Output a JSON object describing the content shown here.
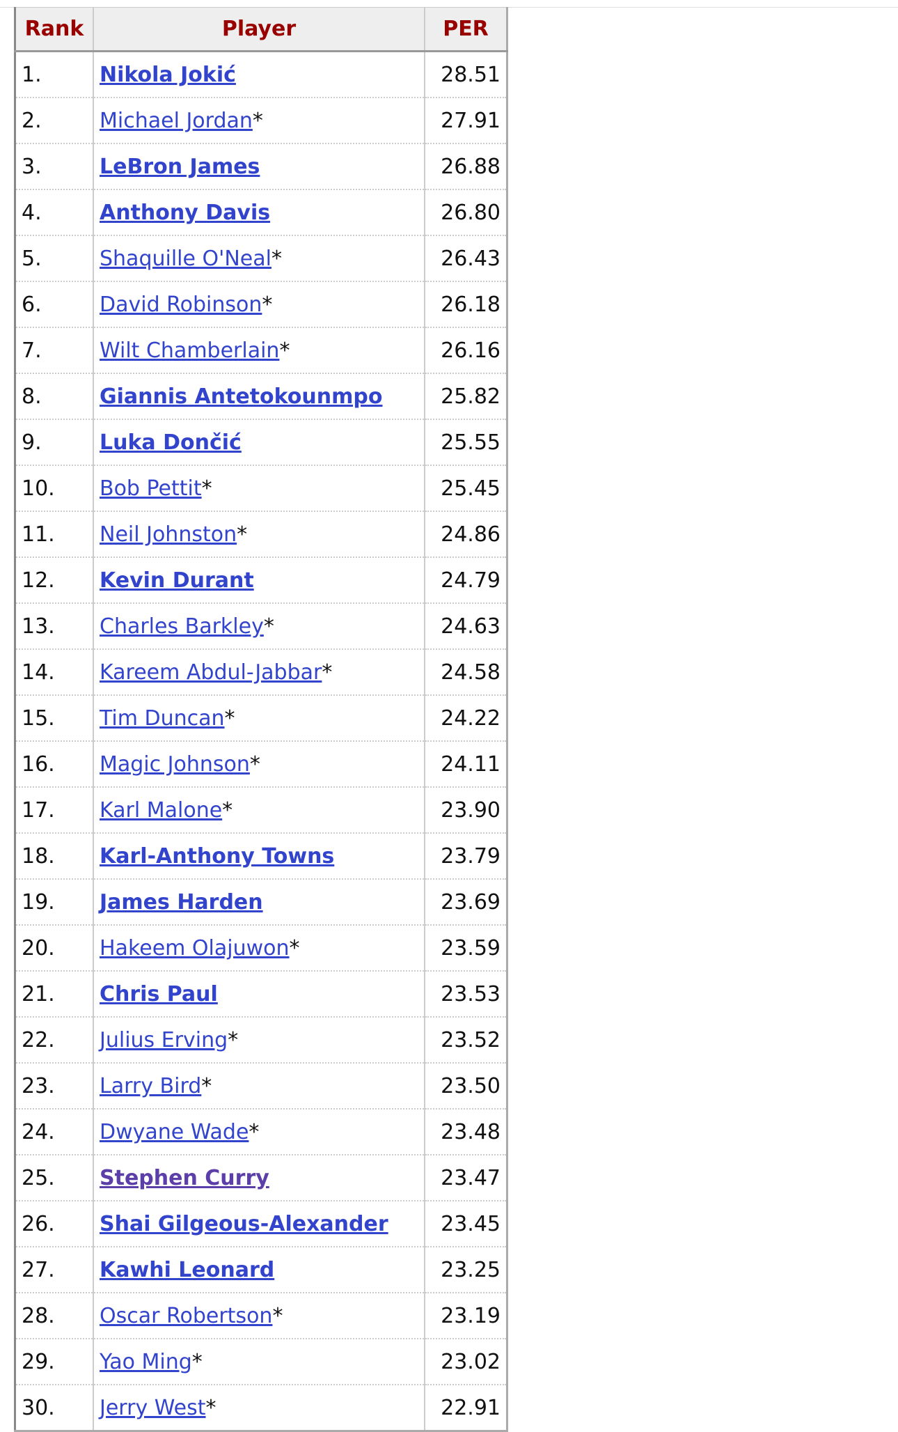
{
  "table": {
    "headers": {
      "rank": "Rank",
      "player": "Player",
      "per": "PER"
    },
    "colors": {
      "header_text": "#990000",
      "link": "#3344cc",
      "visited_link": "#5b3ea8"
    },
    "rows": [
      {
        "rank": "1.",
        "player": "Nikola Jokić",
        "hof": "",
        "per": "28.51",
        "active": true
      },
      {
        "rank": "2.",
        "player": "Michael Jordan",
        "hof": "*",
        "per": "27.91",
        "active": false
      },
      {
        "rank": "3.",
        "player": "LeBron James",
        "hof": "",
        "per": "26.88",
        "active": true
      },
      {
        "rank": "4.",
        "player": "Anthony Davis",
        "hof": "",
        "per": "26.80",
        "active": true
      },
      {
        "rank": "5.",
        "player": "Shaquille O'Neal",
        "hof": "*",
        "per": "26.43",
        "active": false
      },
      {
        "rank": "6.",
        "player": "David Robinson",
        "hof": "*",
        "per": "26.18",
        "active": false
      },
      {
        "rank": "7.",
        "player": "Wilt Chamberlain",
        "hof": "*",
        "per": "26.16",
        "active": false
      },
      {
        "rank": "8.",
        "player": "Giannis Antetokounmpo",
        "hof": "",
        "per": "25.82",
        "active": true
      },
      {
        "rank": "9.",
        "player": "Luka Dončić",
        "hof": "",
        "per": "25.55",
        "active": true
      },
      {
        "rank": "10.",
        "player": "Bob Pettit",
        "hof": "*",
        "per": "25.45",
        "active": false
      },
      {
        "rank": "11.",
        "player": "Neil Johnston",
        "hof": "*",
        "per": "24.86",
        "active": false
      },
      {
        "rank": "12.",
        "player": "Kevin Durant",
        "hof": "",
        "per": "24.79",
        "active": true
      },
      {
        "rank": "13.",
        "player": "Charles Barkley",
        "hof": "*",
        "per": "24.63",
        "active": false
      },
      {
        "rank": "14.",
        "player": "Kareem Abdul-Jabbar",
        "hof": "*",
        "per": "24.58",
        "active": false
      },
      {
        "rank": "15.",
        "player": "Tim Duncan",
        "hof": "*",
        "per": "24.22",
        "active": false
      },
      {
        "rank": "16.",
        "player": "Magic Johnson",
        "hof": "*",
        "per": "24.11",
        "active": false
      },
      {
        "rank": "17.",
        "player": "Karl Malone",
        "hof": "*",
        "per": "23.90",
        "active": false
      },
      {
        "rank": "18.",
        "player": "Karl-Anthony Towns",
        "hof": "",
        "per": "23.79",
        "active": true
      },
      {
        "rank": "19.",
        "player": "James Harden",
        "hof": "",
        "per": "23.69",
        "active": true
      },
      {
        "rank": "20.",
        "player": "Hakeem Olajuwon",
        "hof": "*",
        "per": "23.59",
        "active": false
      },
      {
        "rank": "21.",
        "player": "Chris Paul",
        "hof": "",
        "per": "23.53",
        "active": true
      },
      {
        "rank": "22.",
        "player": "Julius Erving",
        "hof": "*",
        "per": "23.52",
        "active": false
      },
      {
        "rank": "23.",
        "player": "Larry Bird",
        "hof": "*",
        "per": "23.50",
        "active": false
      },
      {
        "rank": "24.",
        "player": "Dwyane Wade",
        "hof": "*",
        "per": "23.48",
        "active": false
      },
      {
        "rank": "25.",
        "player": "Stephen Curry",
        "hof": "",
        "per": "23.47",
        "active": true,
        "visited": true
      },
      {
        "rank": "26.",
        "player": "Shai Gilgeous-Alexander",
        "hof": "",
        "per": "23.45",
        "active": true
      },
      {
        "rank": "27.",
        "player": "Kawhi Leonard",
        "hof": "",
        "per": "23.25",
        "active": true
      },
      {
        "rank": "28.",
        "player": "Oscar Robertson",
        "hof": "*",
        "per": "23.19",
        "active": false
      },
      {
        "rank": "29.",
        "player": "Yao Ming",
        "hof": "*",
        "per": "23.02",
        "active": false
      },
      {
        "rank": "30.",
        "player": "Jerry West",
        "hof": "*",
        "per": "22.91",
        "active": false
      }
    ]
  }
}
